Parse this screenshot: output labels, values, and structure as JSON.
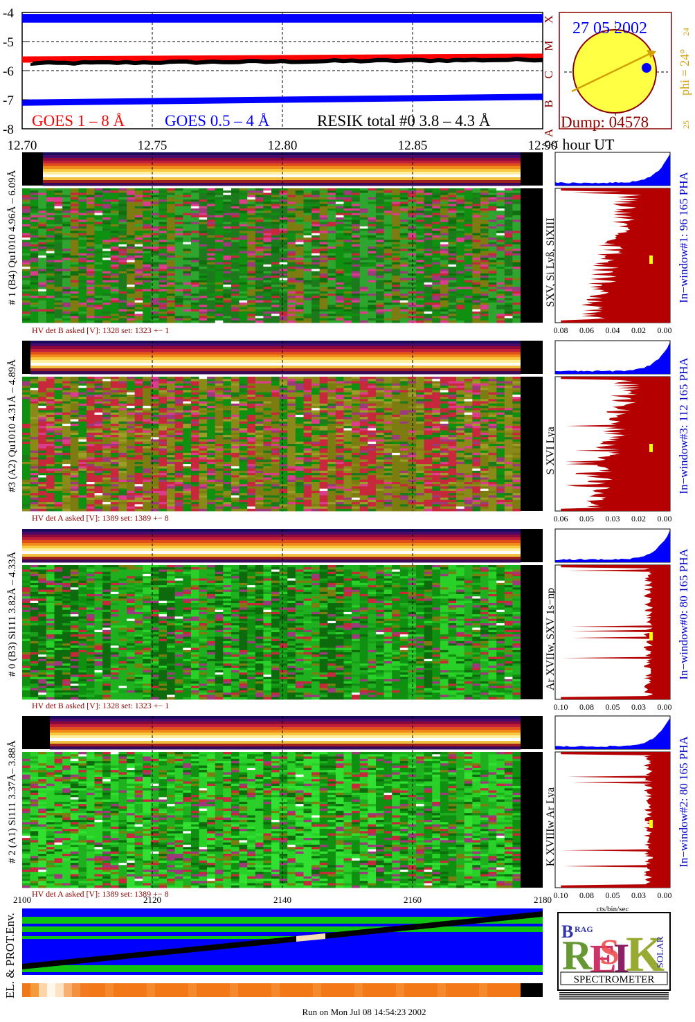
{
  "goes_panel": {
    "chart_data": {
      "type": "line",
      "ylim": [
        -8,
        -4
      ],
      "xlim": [
        12.7,
        12.9
      ],
      "y_ticks": [
        "-4",
        "-5",
        "-6",
        "-7",
        "-8"
      ],
      "x_ticks": [
        "12.70",
        "12.75",
        "12.80",
        "12.85",
        "12.90"
      ],
      "class_labels": [
        "X",
        "M",
        "C",
        "B",
        "A"
      ],
      "series": [
        {
          "name": "GOES 1 – 8 Å",
          "color": "#ff0000",
          "x": [
            12.7,
            12.9
          ],
          "y": [
            -5.62,
            -5.52
          ]
        },
        {
          "name": "GOES 0.5 – 4 Å",
          "color": "#0000ff",
          "x": [
            12.7,
            12.9
          ],
          "y": [
            -7.1,
            -6.9
          ]
        },
        {
          "name": "RESIK total #0  3.8 – 4.3 Å",
          "color": "#000000",
          "x": [
            12.7,
            12.9
          ],
          "y": [
            -5.75,
            -5.62
          ]
        }
      ],
      "band": {
        "color": "#0000ff",
        "y": [
          -4.35,
          -4.05
        ]
      }
    },
    "xunit_label": "<< hour UT"
  },
  "sun_panel": {
    "date": "27 05 2002",
    "phi_label": "phi = 24°",
    "phi_top": "24",
    "phi_bottom": "25",
    "dump": "Dump: 04578"
  },
  "channels": [
    {
      "label": "# 1 (B4) Qu1010 4.96Å – 6.09Å",
      "line_label": "SXV, Si Lyß, SiXIII",
      "hv": "HV det B asked [V]:  1328 set:  1323  +−    1",
      "window_label": "In−window#1:   96 165  PHA",
      "pha_ticks": [
        "0.08",
        "0.06",
        "0.04",
        "0.02",
        "0.00"
      ],
      "pha_max": 0.08,
      "palette": [
        "#109010",
        "#1c7a1c",
        "#2ea52e",
        "#7c7c10",
        "#c8283c",
        "#9c3a7c",
        "#dc3c8c",
        "#0f6f0f"
      ]
    },
    {
      "label": "#3 (A2) Qu1010  4.31Å – 4.89Å",
      "line_label": "S XVI Lya",
      "hv": "HV det A asked [V]:  1389 set:  1389  +−    8",
      "window_label": "In−window#3:   112 165  PHA",
      "pha_ticks": [
        "0.06",
        "0.05",
        "0.03",
        "0.02",
        "0.00"
      ],
      "pha_max": 0.06,
      "palette": [
        "#7c7c10",
        "#8a8a18",
        "#c8283c",
        "#109010",
        "#dc3c8c",
        "#9c3a7c",
        "#1c7a1c",
        "#9c9c28"
      ]
    },
    {
      "label": "# 0 (B3) Si111  3.82Å – 4.33Å",
      "line_label": "Ar XVIIw, SXV 1s−np",
      "hv": "HV det B asked [V]:  1328 set:  1323  +−    1",
      "window_label": "In−window#0:   80 165  PHA",
      "pha_ticks": [
        "0.10",
        "0.08",
        "0.05",
        "0.03",
        "0.00"
      ],
      "pha_max": 0.1,
      "palette": [
        "#109010",
        "#1fb01f",
        "#28d028",
        "#0d6b0d",
        "#c8283c",
        "#7c7c10",
        "#9c3a7c",
        "#18a018"
      ]
    },
    {
      "label": "# 2 (A1) Si111  3.37Å– 3.88Å",
      "line_label": "K XVIIIw  Ar Lya",
      "hv": "HV det A asked [V]:  1389 set:  1389  +−    8",
      "window_label": "In−window#2:   80 165  PHA",
      "pha_ticks": [
        "0.10",
        "0.08",
        "0.05",
        "0.03",
        "0.00"
      ],
      "pha_max": 0.1,
      "palette": [
        "#28d028",
        "#1fb01f",
        "#109010",
        "#32e032",
        "#c8283c",
        "#7c7c10",
        "#0d6b0d",
        "#9c3a7c"
      ]
    }
  ],
  "pha_xlabel": "cts/bin/sec",
  "env_panel": {
    "label": "EL. & PROT.Env.",
    "x_ticks": [
      "2100",
      "2120",
      "2140",
      "2160",
      "2180"
    ]
  },
  "logo": {
    "letters": "BRAGG RESIK SOLAR",
    "word": "SPECTROMETER"
  },
  "footer": "Run on Mon Jul 08 14:54:23 2002",
  "colors": {
    "blue": "#0000ff",
    "red": "#ff0000",
    "pha_red": "#b40000",
    "dark_red": "#8b0000",
    "orange_label": "#d2a000"
  }
}
